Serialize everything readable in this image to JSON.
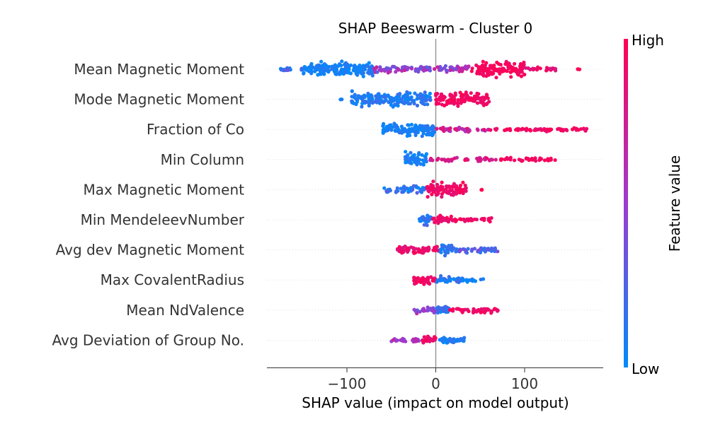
{
  "chart_data": {
    "type": "scatter",
    "subtype": "shap-beeswarm",
    "title": "SHAP Beeswarm - Cluster 0",
    "xlabel": "SHAP value (impact on model output)",
    "xlim": [
      -190,
      190
    ],
    "xticks": [
      -100,
      0,
      100
    ],
    "xtick_labels": [
      "−100",
      "0",
      "100"
    ],
    "colorbar": {
      "title": "Feature value",
      "high_label": "High",
      "low_label": "Low",
      "high_color": "#ff0052",
      "low_color": "#008bfb"
    },
    "features": [
      {
        "name": "Mean Magnetic Moment",
        "spread": 15,
        "segments": [
          {
            "x0": -175,
            "x1": -150,
            "w": 0.25,
            "lo": 0.55,
            "hi": 1.0
          },
          {
            "x0": -150,
            "x1": -70,
            "w": 1.0,
            "lo": 0.85,
            "hi": 1.0
          },
          {
            "x0": -70,
            "x1": 40,
            "w": 0.45,
            "lo": 0.25,
            "hi": 0.75
          },
          {
            "x0": 40,
            "x1": 100,
            "w": 1.0,
            "lo": 0.0,
            "hi": 0.1
          },
          {
            "x0": 100,
            "x1": 140,
            "w": 0.25,
            "lo": 0.0,
            "hi": 0.25
          },
          {
            "x0": 158,
            "x1": 162,
            "w": 0.03,
            "lo": 0.0,
            "hi": 0.0
          }
        ]
      },
      {
        "name": "Mode Magnetic Moment",
        "spread": 14,
        "segments": [
          {
            "x0": -108,
            "x1": -105,
            "w": 0.04,
            "lo": 0.85,
            "hi": 0.95
          },
          {
            "x0": -95,
            "x1": -5,
            "w": 1.0,
            "lo": 0.8,
            "hi": 1.0
          },
          {
            "x0": 0,
            "x1": 60,
            "w": 1.0,
            "lo": 0.0,
            "hi": 0.12
          }
        ]
      },
      {
        "name": "Fraction of Co",
        "spread": 12,
        "segments": [
          {
            "x0": -60,
            "x1": 0,
            "w": 1.0,
            "lo": 0.85,
            "hi": 1.0
          },
          {
            "x0": 0,
            "x1": 60,
            "w": 0.35,
            "lo": 0.1,
            "hi": 0.45
          },
          {
            "x0": 60,
            "x1": 170,
            "w": 0.3,
            "lo": 0.0,
            "hi": 0.15
          }
        ]
      },
      {
        "name": "Min Column",
        "spread": 13,
        "segments": [
          {
            "x0": -35,
            "x1": -10,
            "w": 1.0,
            "lo": 0.85,
            "hi": 1.0
          },
          {
            "x0": -10,
            "x1": 70,
            "w": 0.3,
            "lo": 0.05,
            "hi": 0.3
          },
          {
            "x0": 70,
            "x1": 135,
            "w": 0.25,
            "lo": 0.0,
            "hi": 0.1
          }
        ]
      },
      {
        "name": "Max Magnetic Moment",
        "spread": 13,
        "segments": [
          {
            "x0": -60,
            "x1": -10,
            "w": 0.5,
            "lo": 0.7,
            "hi": 1.0
          },
          {
            "x0": -10,
            "x1": 35,
            "w": 1.0,
            "lo": 0.0,
            "hi": 0.15
          },
          {
            "x0": 48,
            "x1": 52,
            "w": 0.03,
            "lo": 0.0,
            "hi": 0.0
          }
        ]
      },
      {
        "name": "Min MendeleevNumber",
        "spread": 12,
        "segments": [
          {
            "x0": -20,
            "x1": -5,
            "w": 0.8,
            "lo": 0.75,
            "hi": 1.0
          },
          {
            "x0": -5,
            "x1": 25,
            "w": 0.55,
            "lo": 0.0,
            "hi": 0.2
          },
          {
            "x0": 25,
            "x1": 65,
            "w": 0.3,
            "lo": 0.0,
            "hi": 0.15
          }
        ]
      },
      {
        "name": "Avg dev Magnetic Moment",
        "spread": 12,
        "segments": [
          {
            "x0": -45,
            "x1": 5,
            "w": 0.6,
            "lo": 0.0,
            "hi": 0.2
          },
          {
            "x0": 5,
            "x1": 20,
            "w": 0.8,
            "lo": 0.8,
            "hi": 1.0
          },
          {
            "x0": 20,
            "x1": 70,
            "w": 0.4,
            "lo": 0.55,
            "hi": 0.9
          }
        ]
      },
      {
        "name": "Max CovalentRadius",
        "spread": 12,
        "segments": [
          {
            "x0": -25,
            "x1": 0,
            "w": 0.7,
            "lo": 0.0,
            "hi": 0.12
          },
          {
            "x0": 0,
            "x1": 30,
            "w": 0.5,
            "lo": 0.75,
            "hi": 1.0
          },
          {
            "x0": 30,
            "x1": 55,
            "w": 0.3,
            "lo": 0.85,
            "hi": 1.0
          }
        ]
      },
      {
        "name": "Mean NdValence",
        "spread": 11,
        "segments": [
          {
            "x0": -25,
            "x1": 0,
            "w": 0.5,
            "lo": 0.35,
            "hi": 0.7
          },
          {
            "x0": 0,
            "x1": 15,
            "w": 0.8,
            "lo": 0.75,
            "hi": 1.0
          },
          {
            "x0": 15,
            "x1": 70,
            "w": 0.4,
            "lo": 0.0,
            "hi": 0.15
          }
        ]
      },
      {
        "name": "Avg Deviation of Group No.",
        "spread": 11,
        "segments": [
          {
            "x0": -50,
            "x1": -15,
            "w": 0.35,
            "lo": 0.3,
            "hi": 0.6
          },
          {
            "x0": -15,
            "x1": 0,
            "w": 0.8,
            "lo": 0.0,
            "hi": 0.2
          },
          {
            "x0": 0,
            "x1": 32,
            "w": 0.6,
            "lo": 0.8,
            "hi": 1.0
          }
        ]
      }
    ]
  }
}
